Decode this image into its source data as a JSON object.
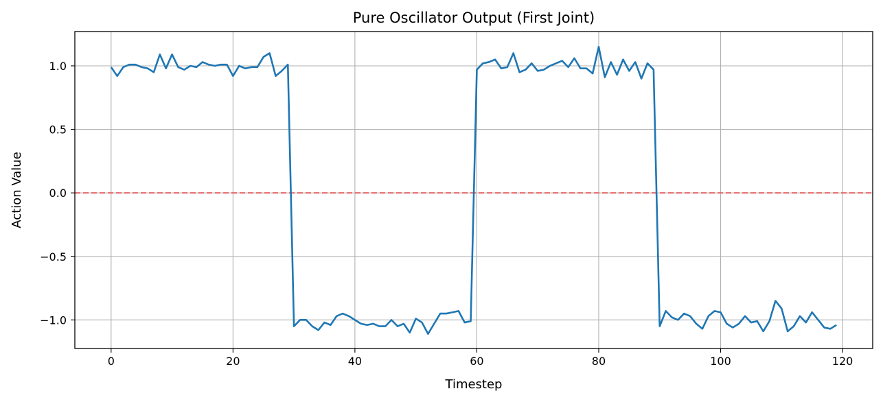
{
  "chart_data": {
    "type": "line",
    "title": "Pure Oscillator Output (First Joint)",
    "xlabel": "Timestep",
    "ylabel": "Action Value",
    "xlim": [
      -5.95,
      124.95
    ],
    "ylim": [
      -1.225,
      1.27
    ],
    "xticks": [
      0,
      20,
      40,
      60,
      80,
      100,
      120
    ],
    "xtick_labels": [
      "0",
      "20",
      "40",
      "60",
      "80",
      "100",
      "120"
    ],
    "yticks": [
      1.0,
      0.5,
      0.0,
      -0.5,
      -1.0
    ],
    "ytick_labels": [
      "1.0",
      "0.5",
      "0.0",
      "−0.5",
      "−1.0"
    ],
    "grid": true,
    "line_color": "#1f77b4",
    "reference_line": {
      "y": 0.0,
      "style": "dashed",
      "color": "#e8696b"
    },
    "series": [
      {
        "x": [
          0,
          1,
          2,
          3,
          4,
          5,
          6,
          7,
          8,
          9,
          10,
          11,
          12,
          13,
          14,
          15,
          16,
          17,
          18,
          19,
          20,
          21,
          22,
          23,
          24,
          25,
          26,
          27,
          28,
          29,
          30,
          31,
          32,
          33,
          34,
          35,
          36,
          37,
          38,
          39,
          40,
          41,
          42,
          43,
          44,
          45,
          46,
          47,
          48,
          49,
          50,
          51,
          52,
          53,
          54,
          55,
          56,
          57,
          58,
          59,
          60,
          61,
          62,
          63,
          64,
          65,
          66,
          67,
          68,
          69,
          70,
          71,
          72,
          73,
          74,
          75,
          76,
          77,
          78,
          79,
          80,
          81,
          82,
          83,
          84,
          85,
          86,
          87,
          88,
          89,
          90,
          91,
          92,
          93,
          94,
          95,
          96,
          97,
          98,
          99,
          100,
          101,
          102,
          103,
          104,
          105,
          106,
          107,
          108,
          109,
          110,
          111,
          112,
          113,
          114,
          115,
          116,
          117,
          118,
          119
        ],
        "y": [
          0.99,
          0.92,
          0.99,
          1.01,
          1.01,
          0.99,
          0.98,
          0.95,
          1.09,
          0.98,
          1.09,
          0.99,
          0.97,
          1.0,
          0.99,
          1.03,
          1.01,
          1.0,
          1.01,
          1.01,
          0.92,
          1.0,
          0.98,
          0.99,
          0.99,
          1.07,
          1.1,
          0.92,
          0.96,
          1.01,
          -1.05,
          -1.0,
          -1.0,
          -1.05,
          -1.08,
          -1.02,
          -1.04,
          -0.97,
          -0.95,
          -0.97,
          -1.0,
          -1.03,
          -1.04,
          -1.03,
          -1.05,
          -1.05,
          -1.0,
          -1.05,
          -1.03,
          -1.1,
          -0.99,
          -1.02,
          -1.11,
          -1.03,
          -0.95,
          -0.95,
          -0.94,
          -0.93,
          -1.02,
          -1.01,
          0.97,
          1.02,
          1.03,
          1.05,
          0.98,
          0.99,
          1.1,
          0.95,
          0.97,
          1.02,
          0.96,
          0.97,
          1.0,
          1.02,
          1.04,
          0.99,
          1.06,
          0.98,
          0.98,
          0.94,
          1.15,
          0.91,
          1.03,
          0.93,
          1.05,
          0.96,
          1.03,
          0.9,
          1.02,
          0.97,
          -1.05,
          -0.93,
          -0.98,
          -1.0,
          -0.95,
          -0.97,
          -1.03,
          -1.07,
          -0.97,
          -0.93,
          -0.94,
          -1.03,
          -1.06,
          -1.03,
          -0.97,
          -1.02,
          -1.01,
          -1.09,
          -1.01,
          -0.85,
          -0.91,
          -1.09,
          -1.05,
          -0.97,
          -1.02,
          -0.94,
          -1.0,
          -1.06,
          -1.07,
          -1.04
        ]
      }
    ]
  }
}
